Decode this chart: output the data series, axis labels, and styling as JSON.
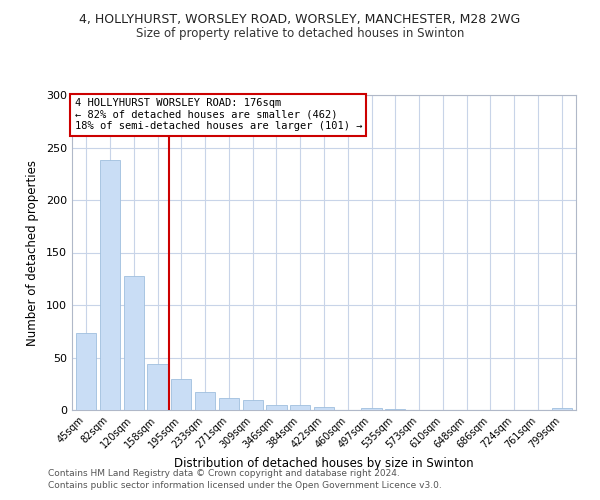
{
  "title_line1": "4, HOLLYHURST, WORSLEY ROAD, WORSLEY, MANCHESTER, M28 2WG",
  "title_line2": "Size of property relative to detached houses in Swinton",
  "xlabel": "Distribution of detached houses by size in Swinton",
  "ylabel": "Number of detached properties",
  "bar_labels": [
    "45sqm",
    "82sqm",
    "120sqm",
    "158sqm",
    "195sqm",
    "233sqm",
    "271sqm",
    "309sqm",
    "346sqm",
    "384sqm",
    "422sqm",
    "460sqm",
    "497sqm",
    "535sqm",
    "573sqm",
    "610sqm",
    "648sqm",
    "686sqm",
    "724sqm",
    "761sqm",
    "799sqm"
  ],
  "bar_values": [
    73,
    238,
    128,
    44,
    30,
    17,
    11,
    10,
    5,
    5,
    3,
    0,
    2,
    1,
    0,
    0,
    0,
    0,
    0,
    0,
    2
  ],
  "bar_color": "#c9ddf5",
  "bar_edge_color": "#a0bfde",
  "vline_x": 3.5,
  "vline_color": "#cc0000",
  "annotation_line1": "4 HOLLYHURST WORSLEY ROAD: 176sqm",
  "annotation_line2": "← 82% of detached houses are smaller (462)",
  "annotation_line3": "18% of semi-detached houses are larger (101) →",
  "ylim": [
    0,
    300
  ],
  "yticks": [
    0,
    50,
    100,
    150,
    200,
    250,
    300
  ],
  "footer_line1": "Contains HM Land Registry data © Crown copyright and database right 2024.",
  "footer_line2": "Contains public sector information licensed under the Open Government Licence v3.0.",
  "background_color": "#ffffff",
  "grid_color": "#c8d4e8"
}
